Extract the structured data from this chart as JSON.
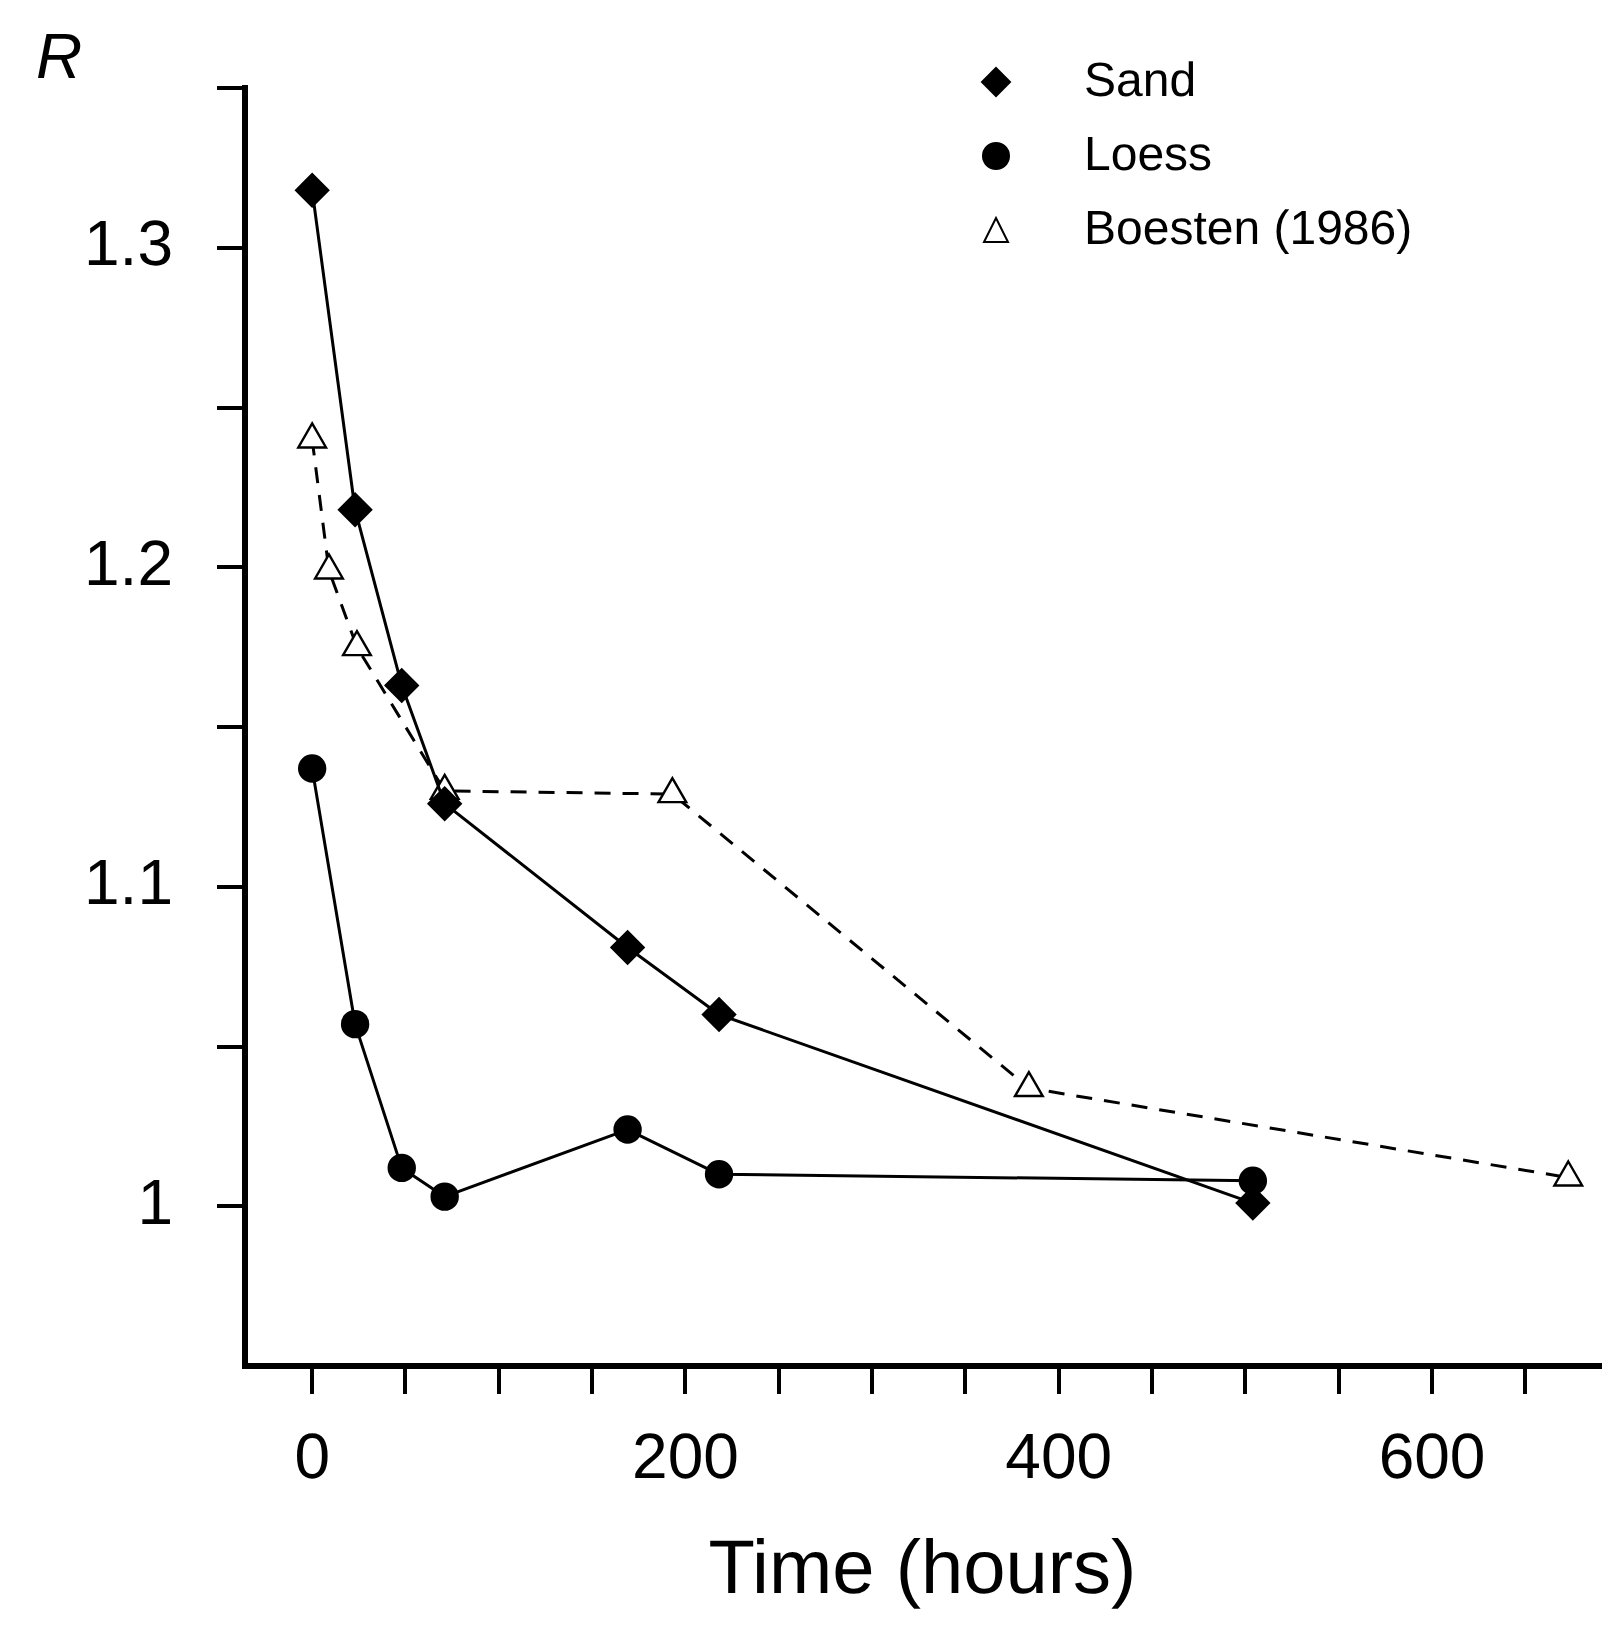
{
  "chart_data": {
    "type": "line",
    "xlabel": "Time (hours)",
    "ylabel": "R",
    "xlim": [
      -36,
      690
    ],
    "xticks": [
      0,
      {
        "value": 50,
        "label": null
      },
      {
        "value": 100,
        "label": null
      },
      {
        "value": 150,
        "label": null
      },
      200,
      {
        "value": 250,
        "label": null
      },
      {
        "value": 300,
        "label": null
      },
      {
        "value": 350,
        "label": null
      },
      400,
      {
        "value": 450,
        "label": null
      },
      {
        "value": 500,
        "label": null
      },
      {
        "value": 550,
        "label": null
      },
      600,
      {
        "value": 650,
        "label": null
      }
    ],
    "ylim": [
      0.95,
      1.35
    ],
    "yticks": [
      1,
      {
        "value": 1.05,
        "label": null
      },
      1.1,
      {
        "value": 1.15,
        "label": null
      },
      1.2,
      {
        "value": 1.25,
        "label": null
      },
      1.3,
      {
        "value": 1.35,
        "label": null
      }
    ],
    "grid": false,
    "legend": "top right",
    "series": [
      {
        "name": "Sand",
        "color": "#000000",
        "marker": "diamond",
        "line_style": "solid",
        "x": [
          0,
          23,
          48,
          71,
          169,
          218,
          504
        ],
        "values": [
          1.318,
          1.218,
          1.163,
          1.126,
          1.081,
          1.06,
          1.001
        ]
      },
      {
        "name": "Loess",
        "color": "#000000",
        "marker": "circle",
        "line_style": "solid",
        "x": [
          0,
          23,
          48,
          71,
          169,
          218,
          504
        ],
        "values": [
          1.137,
          1.057,
          1.012,
          1.003,
          1.024,
          1.01,
          1.008
        ]
      },
      {
        "name": "Boesten (1986)",
        "color": "#000000",
        "marker": "triangle",
        "line_style": "dashed",
        "x": [
          0,
          9,
          24,
          71,
          193,
          384,
          673
        ],
        "values": [
          1.24,
          1.199,
          1.175,
          1.13,
          1.129,
          1.037,
          1.009
        ]
      }
    ]
  }
}
